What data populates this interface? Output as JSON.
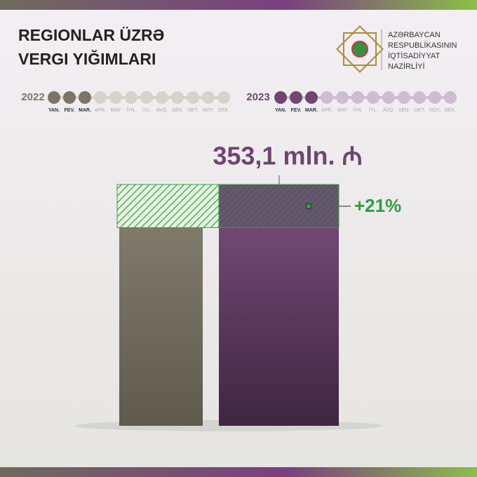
{
  "chart_data": {
    "type": "bar",
    "title": [
      "REGIONLAR ÜZRƏ",
      "VERGI YIĞIMLARI"
    ],
    "organization": [
      "AZƏRBAYCAN",
      "RESPUBLİKASININ",
      "İQTİSADİYYAT",
      "NAZİRLİYİ"
    ],
    "categories": [
      "2022",
      "2023"
    ],
    "values": [
      290,
      353.1
    ],
    "value_labels": [
      null,
      "353,1 mln. ₼"
    ],
    "colors": [
      "#7b7565",
      "#6e4670"
    ],
    "light_colors": [
      "#d6d3cc",
      "#cfbcd1"
    ],
    "months": [
      "YAN.",
      "FEV.",
      "MAR.",
      "APR.",
      "MAY",
      "İYN.",
      "İYL.",
      "AVQ.",
      "SEN.",
      "OKT.",
      "NOY.",
      "DEK."
    ],
    "active_months": 3,
    "change": 21,
    "change_label": "+21%",
    "change_color": "#2e9e3f"
  }
}
